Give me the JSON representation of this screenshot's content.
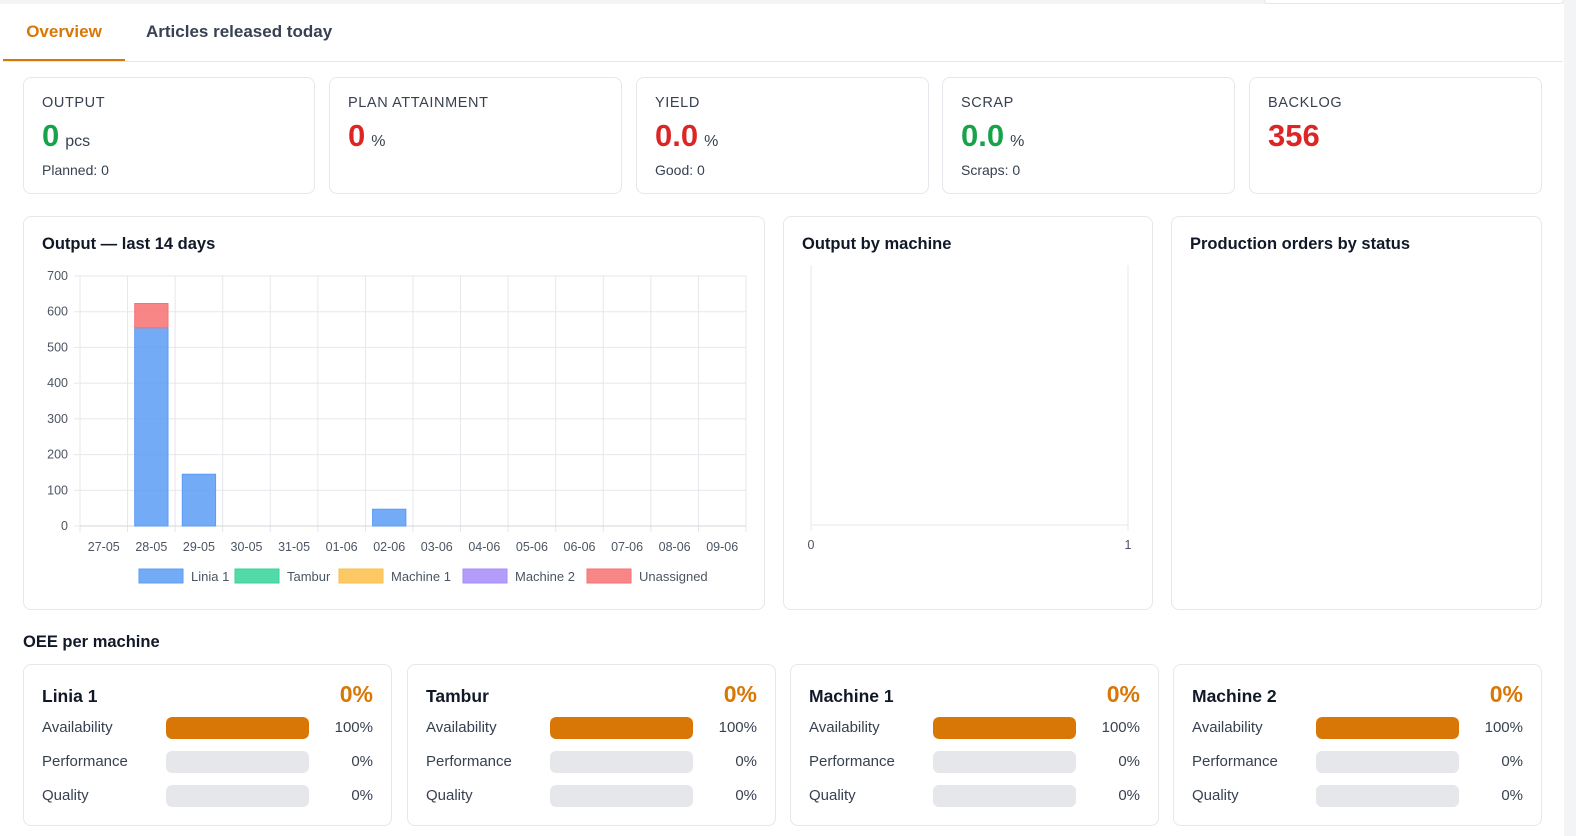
{
  "tabs": [
    {
      "label": "Overview",
      "active": true
    },
    {
      "label": "Articles released today",
      "active": false
    }
  ],
  "kpis": [
    {
      "label": "OUTPUT",
      "value": "0",
      "unit": "pcs",
      "sub": "Planned: 0",
      "color": "#16a34a"
    },
    {
      "label": "PLAN ATTAINMENT",
      "value": "0",
      "unit": "%",
      "sub": "",
      "color": "#dc2626"
    },
    {
      "label": "YIELD",
      "value": "0.0",
      "unit": "%",
      "sub": "Good: 0",
      "color": "#dc2626"
    },
    {
      "label": "SCRAP",
      "value": "0.0",
      "unit": "%",
      "sub": "Scraps: 0",
      "color": "#16a34a"
    },
    {
      "label": "BACKLOG",
      "value": "356",
      "unit": "",
      "sub": "",
      "color": "#dc2626"
    }
  ],
  "panels": {
    "output_14d_title": "Output — last 14 days",
    "by_machine_title": "Output by machine",
    "by_status_title": "Production orders by status"
  },
  "chart_data": [
    {
      "type": "bar",
      "stacked": true,
      "title": "Output — last 14 days",
      "categories": [
        "27-05",
        "28-05",
        "29-05",
        "30-05",
        "31-05",
        "01-06",
        "02-06",
        "03-06",
        "04-06",
        "05-06",
        "06-06",
        "07-06",
        "08-06",
        "09-06"
      ],
      "series": [
        {
          "name": "Linia 1",
          "color": "#5b9cf6",
          "values": [
            0,
            555,
            145,
            0,
            0,
            0,
            47,
            0,
            0,
            0,
            0,
            0,
            0,
            0
          ]
        },
        {
          "name": "Tambur",
          "color": "#34d399",
          "values": [
            0,
            0,
            0,
            0,
            0,
            0,
            0,
            0,
            0,
            0,
            0,
            0,
            0,
            0
          ]
        },
        {
          "name": "Machine 1",
          "color": "#fbbf4a",
          "values": [
            0,
            0,
            0,
            0,
            0,
            0,
            0,
            0,
            0,
            0,
            0,
            0,
            0,
            0
          ]
        },
        {
          "name": "Machine 2",
          "color": "#a78bfa",
          "values": [
            0,
            0,
            0,
            0,
            0,
            0,
            0,
            0,
            0,
            0,
            0,
            0,
            0,
            0
          ]
        },
        {
          "name": "Unassigned",
          "color": "#f87171",
          "values": [
            0,
            68,
            0,
            0,
            0,
            0,
            0,
            0,
            0,
            0,
            0,
            0,
            0,
            0
          ]
        }
      ],
      "yticks": [
        0,
        100,
        200,
        300,
        400,
        500,
        600,
        700
      ],
      "ylim": [
        0,
        700
      ],
      "grid": true,
      "legend": "bottom"
    },
    {
      "type": "bar",
      "title": "Output by machine",
      "xticks": [
        0,
        1
      ],
      "xlim": [
        0,
        1
      ],
      "series": []
    }
  ],
  "oee_section_title": "OEE per machine",
  "oee": [
    {
      "name": "Linia 1",
      "pct": "0%",
      "rows": [
        {
          "label": "Availability",
          "value": "100%",
          "fill": 1.0
        },
        {
          "label": "Performance",
          "value": "0%",
          "fill": 0
        },
        {
          "label": "Quality",
          "value": "0%",
          "fill": 0
        }
      ]
    },
    {
      "name": "Tambur",
      "pct": "0%",
      "rows": [
        {
          "label": "Availability",
          "value": "100%",
          "fill": 1.0
        },
        {
          "label": "Performance",
          "value": "0%",
          "fill": 0
        },
        {
          "label": "Quality",
          "value": "0%",
          "fill": 0
        }
      ]
    },
    {
      "name": "Machine 1",
      "pct": "0%",
      "rows": [
        {
          "label": "Availability",
          "value": "100%",
          "fill": 1.0
        },
        {
          "label": "Performance",
          "value": "0%",
          "fill": 0
        },
        {
          "label": "Quality",
          "value": "0%",
          "fill": 0
        }
      ]
    },
    {
      "name": "Machine 2",
      "pct": "0%",
      "rows": [
        {
          "label": "Availability",
          "value": "100%",
          "fill": 1.0
        },
        {
          "label": "Performance",
          "value": "0%",
          "fill": 0
        },
        {
          "label": "Quality",
          "value": "0%",
          "fill": 0
        }
      ]
    }
  ]
}
